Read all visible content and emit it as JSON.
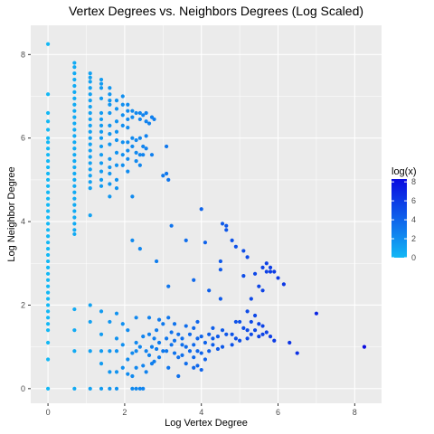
{
  "chart_data": {
    "type": "scatter",
    "title": "Vertex Degrees vs. Neighbors Degrees (Log Scaled)",
    "xlabel": "Log Vertex Degree",
    "ylabel": "Log Neighbor Degree",
    "xlim": [
      -0.45,
      8.7
    ],
    "ylim": [
      -0.35,
      8.7
    ],
    "x_ticks": [
      0,
      2,
      4,
      6,
      8
    ],
    "y_ticks": [
      0,
      2,
      4,
      6,
      8
    ],
    "grid": true,
    "legend_position": "right",
    "legend": {
      "title": "log(x)",
      "min": 0,
      "max": 8.3,
      "ticks": [
        0,
        2,
        4,
        6,
        8
      ],
      "low_color": "#12b8f5",
      "high_color": "#0a0ae0"
    },
    "panel_color": "#ebebeb",
    "grid_color": "#ffffff",
    "points": [
      [
        0,
        8.25
      ],
      [
        0,
        7.05
      ],
      [
        0,
        6.6
      ],
      [
        0,
        6.4
      ],
      [
        0,
        6.2
      ],
      [
        0,
        6.0
      ],
      [
        0,
        5.9
      ],
      [
        0,
        5.75
      ],
      [
        0,
        5.6
      ],
      [
        0,
        5.45
      ],
      [
        0,
        5.3
      ],
      [
        0,
        5.15
      ],
      [
        0,
        5.0
      ],
      [
        0,
        4.85
      ],
      [
        0,
        4.7
      ],
      [
        0,
        4.55
      ],
      [
        0,
        4.4
      ],
      [
        0,
        4.25
      ],
      [
        0,
        4.1
      ],
      [
        0,
        3.95
      ],
      [
        0,
        3.8
      ],
      [
        0,
        3.65
      ],
      [
        0,
        3.5
      ],
      [
        0,
        3.35
      ],
      [
        0,
        3.2
      ],
      [
        0,
        3.05
      ],
      [
        0,
        2.9
      ],
      [
        0,
        2.75
      ],
      [
        0,
        2.6
      ],
      [
        0,
        2.45
      ],
      [
        0,
        2.3
      ],
      [
        0,
        2.15
      ],
      [
        0,
        2.0
      ],
      [
        0,
        1.85
      ],
      [
        0,
        1.7
      ],
      [
        0,
        1.55
      ],
      [
        0,
        1.4
      ],
      [
        0,
        1.1
      ],
      [
        0,
        0.7
      ],
      [
        0,
        0.0
      ],
      [
        0.69,
        7.8
      ],
      [
        0.69,
        7.7
      ],
      [
        0.69,
        7.55
      ],
      [
        0.69,
        7.4
      ],
      [
        0.69,
        7.25
      ],
      [
        0.69,
        7.1
      ],
      [
        0.69,
        6.95
      ],
      [
        0.69,
        6.8
      ],
      [
        0.69,
        6.65
      ],
      [
        0.69,
        6.5
      ],
      [
        0.69,
        6.35
      ],
      [
        0.69,
        6.2
      ],
      [
        0.69,
        6.05
      ],
      [
        0.69,
        5.9
      ],
      [
        0.69,
        5.75
      ],
      [
        0.69,
        5.6
      ],
      [
        0.69,
        5.45
      ],
      [
        0.69,
        5.3
      ],
      [
        0.69,
        5.15
      ],
      [
        0.69,
        5.0
      ],
      [
        0.69,
        4.85
      ],
      [
        0.69,
        4.7
      ],
      [
        0.69,
        4.55
      ],
      [
        0.69,
        4.4
      ],
      [
        0.69,
        4.25
      ],
      [
        0.69,
        4.1
      ],
      [
        0.69,
        3.95
      ],
      [
        0.69,
        3.8
      ],
      [
        0.69,
        3.7
      ],
      [
        0.69,
        1.9
      ],
      [
        0.69,
        1.4
      ],
      [
        0.69,
        0.9
      ],
      [
        0.69,
        0.0
      ],
      [
        1.1,
        7.55
      ],
      [
        1.1,
        7.45
      ],
      [
        1.1,
        7.35
      ],
      [
        1.1,
        7.2
      ],
      [
        1.1,
        7.05
      ],
      [
        1.1,
        6.9
      ],
      [
        1.1,
        6.75
      ],
      [
        1.1,
        6.6
      ],
      [
        1.1,
        6.45
      ],
      [
        1.1,
        6.3
      ],
      [
        1.1,
        6.15
      ],
      [
        1.1,
        6.0
      ],
      [
        1.1,
        5.85
      ],
      [
        1.1,
        5.7
      ],
      [
        1.1,
        5.55
      ],
      [
        1.1,
        5.4
      ],
      [
        1.1,
        5.25
      ],
      [
        1.1,
        5.1
      ],
      [
        1.1,
        4.95
      ],
      [
        1.1,
        4.8
      ],
      [
        1.1,
        4.15
      ],
      [
        1.1,
        2.0
      ],
      [
        1.1,
        1.6
      ],
      [
        1.1,
        0.9
      ],
      [
        1.1,
        0.0
      ],
      [
        1.39,
        7.4
      ],
      [
        1.39,
        7.3
      ],
      [
        1.39,
        7.2
      ],
      [
        1.39,
        6.95
      ],
      [
        1.39,
        6.6
      ],
      [
        1.39,
        6.45
      ],
      [
        1.39,
        6.3
      ],
      [
        1.39,
        6.15
      ],
      [
        1.39,
        6.0
      ],
      [
        1.39,
        5.8
      ],
      [
        1.39,
        5.6
      ],
      [
        1.39,
        5.4
      ],
      [
        1.39,
        5.2
      ],
      [
        1.39,
        5.0
      ],
      [
        1.39,
        4.85
      ],
      [
        1.39,
        1.85
      ],
      [
        1.39,
        1.3
      ],
      [
        1.39,
        0.9
      ],
      [
        1.39,
        0.6
      ],
      [
        1.39,
        0.0
      ],
      [
        1.61,
        7.2
      ],
      [
        1.61,
        7.05
      ],
      [
        1.61,
        6.9
      ],
      [
        1.61,
        6.8
      ],
      [
        1.61,
        6.6
      ],
      [
        1.61,
        6.3
      ],
      [
        1.61,
        6.1
      ],
      [
        1.61,
        5.85
      ],
      [
        1.61,
        5.5
      ],
      [
        1.61,
        5.3
      ],
      [
        1.61,
        5.15
      ],
      [
        1.61,
        4.9
      ],
      [
        1.61,
        4.6
      ],
      [
        1.61,
        1.6
      ],
      [
        1.61,
        0.9
      ],
      [
        1.61,
        0.4
      ],
      [
        1.61,
        0.0
      ],
      [
        1.79,
        6.9
      ],
      [
        1.79,
        6.7
      ],
      [
        1.79,
        6.4
      ],
      [
        1.79,
        6.15
      ],
      [
        1.79,
        5.95
      ],
      [
        1.79,
        5.65
      ],
      [
        1.79,
        5.35
      ],
      [
        1.79,
        5.0
      ],
      [
        1.79,
        4.8
      ],
      [
        1.79,
        1.8
      ],
      [
        1.79,
        1.2
      ],
      [
        1.79,
        0.9
      ],
      [
        1.79,
        0.4
      ],
      [
        1.79,
        0.0
      ],
      [
        1.95,
        7.0
      ],
      [
        1.95,
        6.8
      ],
      [
        1.95,
        6.55
      ],
      [
        1.95,
        6.3
      ],
      [
        1.95,
        5.9
      ],
      [
        1.95,
        5.6
      ],
      [
        1.95,
        5.35
      ],
      [
        1.95,
        1.55
      ],
      [
        1.95,
        1.05
      ],
      [
        1.95,
        0.5
      ],
      [
        2.08,
        6.8
      ],
      [
        2.08,
        6.65
      ],
      [
        2.08,
        6.45
      ],
      [
        2.08,
        6.25
      ],
      [
        2.08,
        5.9
      ],
      [
        2.08,
        5.7
      ],
      [
        2.08,
        5.5
      ],
      [
        2.08,
        5.2
      ],
      [
        2.08,
        1.4
      ],
      [
        2.08,
        0.7
      ],
      [
        2.08,
        0.35
      ],
      [
        2.2,
        6.65
      ],
      [
        2.2,
        6.5
      ],
      [
        2.2,
        6.0
      ],
      [
        2.2,
        5.8
      ],
      [
        2.2,
        4.6
      ],
      [
        2.2,
        3.55
      ],
      [
        2.2,
        0.85
      ],
      [
        2.2,
        0.3
      ],
      [
        2.2,
        0.0
      ],
      [
        2.3,
        6.6
      ],
      [
        2.3,
        5.95
      ],
      [
        2.3,
        5.65
      ],
      [
        2.3,
        5.45
      ],
      [
        2.3,
        1.7
      ],
      [
        2.3,
        1.1
      ],
      [
        2.3,
        0.9
      ],
      [
        2.3,
        0.5
      ],
      [
        2.3,
        0.0
      ],
      [
        2.4,
        6.6
      ],
      [
        2.4,
        6.45
      ],
      [
        2.4,
        6.0
      ],
      [
        2.4,
        5.6
      ],
      [
        2.4,
        5.35
      ],
      [
        2.4,
        3.35
      ],
      [
        2.4,
        1.0
      ],
      [
        2.4,
        0.0
      ],
      [
        2.48,
        6.55
      ],
      [
        2.48,
        5.8
      ],
      [
        2.48,
        5.6
      ],
      [
        2.48,
        1.25
      ],
      [
        2.48,
        0.55
      ],
      [
        2.48,
        0.0
      ],
      [
        2.56,
        6.6
      ],
      [
        2.56,
        6.4
      ],
      [
        2.56,
        6.05
      ],
      [
        2.56,
        5.75
      ],
      [
        2.56,
        0.9
      ],
      [
        2.56,
        0.4
      ],
      [
        2.64,
        6.35
      ],
      [
        2.64,
        1.7
      ],
      [
        2.64,
        1.3
      ],
      [
        2.64,
        0.8
      ],
      [
        2.71,
        6.5
      ],
      [
        2.71,
        5.6
      ],
      [
        2.71,
        1.0
      ],
      [
        2.71,
        0.6
      ],
      [
        2.77,
        6.45
      ],
      [
        2.77,
        1.2
      ],
      [
        2.77,
        0.65
      ],
      [
        2.83,
        1.4
      ],
      [
        2.83,
        0.95
      ],
      [
        2.83,
        3.05
      ],
      [
        2.9,
        1.65
      ],
      [
        2.9,
        1.1
      ],
      [
        2.9,
        0.75
      ],
      [
        3.0,
        5.1
      ],
      [
        3.0,
        1.55
      ],
      [
        3.0,
        0.9
      ],
      [
        3.09,
        5.8
      ],
      [
        3.09,
        5.15
      ],
      [
        3.09,
        1.2
      ],
      [
        3.09,
        0.9
      ],
      [
        3.14,
        5.0
      ],
      [
        3.14,
        2.45
      ],
      [
        3.14,
        1.7
      ],
      [
        3.14,
        0.5
      ],
      [
        3.22,
        3.9
      ],
      [
        3.22,
        1.35
      ],
      [
        3.22,
        1.05
      ],
      [
        3.3,
        1.55
      ],
      [
        3.3,
        1.15
      ],
      [
        3.3,
        0.85
      ],
      [
        3.4,
        1.3
      ],
      [
        3.4,
        0.75
      ],
      [
        3.4,
        0.3
      ],
      [
        3.5,
        1.2
      ],
      [
        3.5,
        1.05
      ],
      [
        3.5,
        0.8
      ],
      [
        3.6,
        3.55
      ],
      [
        3.6,
        1.5
      ],
      [
        3.6,
        1.0
      ],
      [
        3.6,
        0.6
      ],
      [
        3.7,
        1.3
      ],
      [
        3.7,
        0.9
      ],
      [
        3.8,
        2.6
      ],
      [
        3.8,
        1.45
      ],
      [
        3.8,
        1.05
      ],
      [
        3.8,
        0.75
      ],
      [
        3.8,
        0.5
      ],
      [
        3.9,
        1.6
      ],
      [
        3.9,
        1.2
      ],
      [
        3.9,
        0.9
      ],
      [
        3.9,
        0.55
      ],
      [
        4.0,
        4.3
      ],
      [
        4.0,
        1.25
      ],
      [
        4.0,
        0.85
      ],
      [
        4.0,
        0.45
      ],
      [
        4.1,
        3.5
      ],
      [
        4.1,
        1.1
      ],
      [
        4.1,
        0.7
      ],
      [
        4.2,
        2.35
      ],
      [
        4.2,
        1.3
      ],
      [
        4.2,
        0.9
      ],
      [
        4.3,
        1.45
      ],
      [
        4.3,
        1.05
      ],
      [
        4.3,
        1.2
      ],
      [
        4.43,
        1.25
      ],
      [
        4.43,
        0.95
      ],
      [
        4.5,
        3.05
      ],
      [
        4.5,
        2.85
      ],
      [
        4.5,
        2.15
      ],
      [
        4.55,
        3.95
      ],
      [
        4.55,
        1.4
      ],
      [
        4.55,
        1.0
      ],
      [
        4.65,
        3.9
      ],
      [
        4.65,
        3.8
      ],
      [
        4.65,
        1.3
      ],
      [
        4.8,
        3.55
      ],
      [
        4.8,
        1.3
      ],
      [
        4.8,
        1.05
      ],
      [
        4.9,
        3.4
      ],
      [
        4.9,
        1.6
      ],
      [
        4.9,
        1.2
      ],
      [
        5.0,
        1.6
      ],
      [
        5.0,
        1.15
      ],
      [
        5.1,
        3.3
      ],
      [
        5.1,
        2.7
      ],
      [
        5.1,
        1.45
      ],
      [
        5.2,
        3.15
      ],
      [
        5.2,
        1.85
      ],
      [
        5.2,
        1.4
      ],
      [
        5.2,
        1.2
      ],
      [
        5.3,
        2.15
      ],
      [
        5.3,
        1.6
      ],
      [
        5.3,
        1.3
      ],
      [
        5.4,
        2.75
      ],
      [
        5.4,
        1.75
      ],
      [
        5.4,
        1.4
      ],
      [
        5.5,
        2.45
      ],
      [
        5.5,
        1.55
      ],
      [
        5.5,
        1.25
      ],
      [
        5.6,
        2.9
      ],
      [
        5.6,
        2.35
      ],
      [
        5.6,
        1.5
      ],
      [
        5.6,
        1.3
      ],
      [
        5.7,
        3.0
      ],
      [
        5.7,
        2.8
      ],
      [
        5.7,
        1.35
      ],
      [
        5.8,
        2.9
      ],
      [
        5.8,
        2.8
      ],
      [
        5.8,
        1.25
      ],
      [
        5.9,
        2.8
      ],
      [
        5.9,
        1.15
      ],
      [
        6.0,
        2.65
      ],
      [
        6.15,
        2.5
      ],
      [
        6.3,
        1.1
      ],
      [
        6.5,
        0.85
      ],
      [
        7.0,
        1.8
      ],
      [
        8.25,
        1.0
      ]
    ]
  }
}
